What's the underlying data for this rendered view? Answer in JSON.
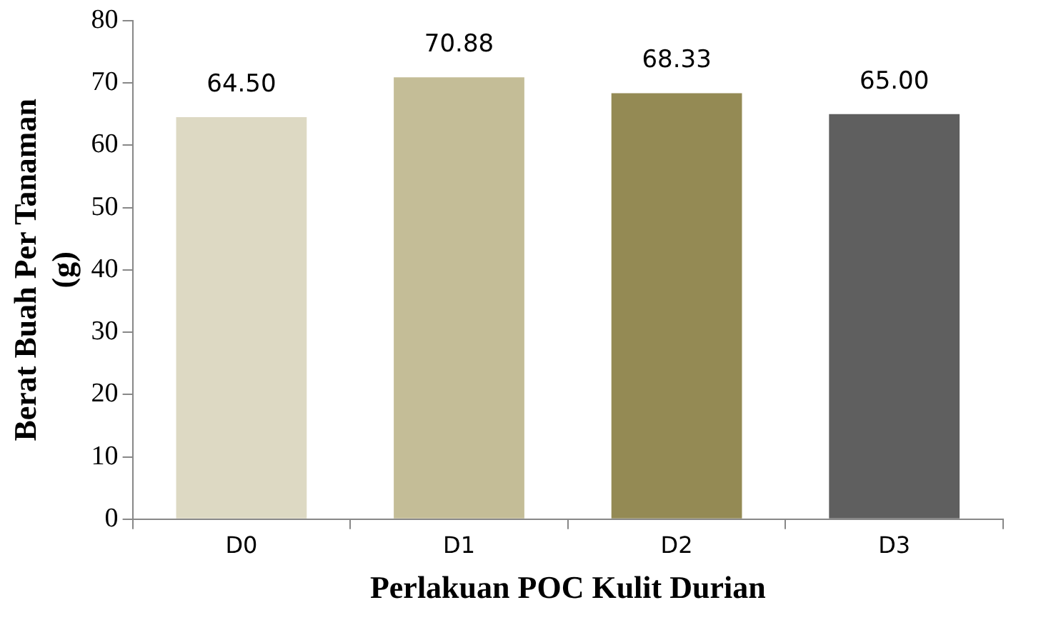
{
  "chart_data": {
    "type": "bar",
    "xlabel": "Perlakuan POC Kulit Durian",
    "ylabel": "Berat Buah Per Tanaman (g)",
    "categories": [
      "D0",
      "D1",
      "D2",
      "D3"
    ],
    "values": [
      64.5,
      70.88,
      68.33,
      65.0
    ],
    "colors": [
      "#ddd9c3",
      "#c4bd97",
      "#948a54",
      "#5f5f5f"
    ],
    "value_labels": [
      "64.50",
      "70.88",
      "68.33",
      "65.00"
    ],
    "ylim": [
      0,
      80
    ],
    "yticks": [
      0,
      10,
      20,
      30,
      40,
      50,
      60,
      70,
      80
    ],
    "grid": false,
    "legend": false
  }
}
